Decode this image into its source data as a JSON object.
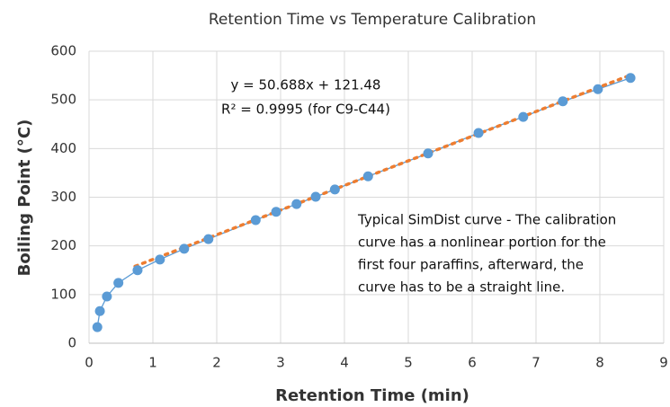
{
  "chart_data": {
    "type": "scatter",
    "title": "Retention Time vs Temperature Calibration",
    "x_label": "Retention Time (min)",
    "y_label": "Boiling Point (°C)",
    "x": [
      0.13,
      0.17,
      0.28,
      0.46,
      0.76,
      1.11,
      1.49,
      1.87,
      2.61,
      2.93,
      3.25,
      3.55,
      3.85,
      4.37,
      5.31,
      6.1,
      6.8,
      7.42,
      7.97,
      8.48
    ],
    "values": [
      33,
      66,
      96,
      124,
      150,
      172,
      194,
      214,
      253,
      270,
      286,
      301,
      316,
      343,
      390,
      432,
      465,
      497,
      522,
      545
    ],
    "color": "#5b9bd5",
    "trendline": {
      "x": [
        0.72,
        8.48
      ],
      "values": [
        158,
        551
      ],
      "color": "#ed7d31"
    },
    "xlim": [
      0,
      9
    ],
    "xticks": [
      0,
      1,
      2,
      3,
      4,
      5,
      6,
      7,
      8,
      9
    ],
    "ylim": [
      0,
      600
    ],
    "yticks": [
      0,
      100,
      200,
      300,
      400,
      500,
      600
    ],
    "grid": true,
    "equation": [
      "y = 50.688x + 121.48",
      "R² = 0.9995 (for C9-C44)"
    ],
    "note": [
      "Typical SimDist curve - The calibration",
      "curve has a nonlinear portion for the",
      "first four paraffins, afterward, the",
      "curve has to be a straight line."
    ]
  }
}
